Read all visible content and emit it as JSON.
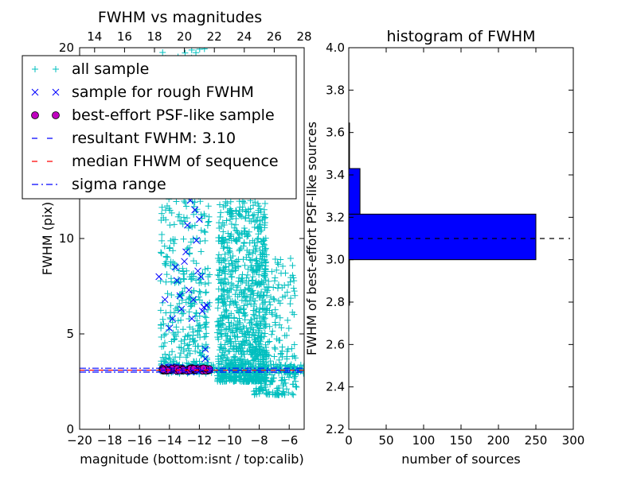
{
  "chart_data": [
    {
      "type": "scatter",
      "title": "FWHM vs magnitudes",
      "xlabel": "magnitude (bottom:isnt / top:calib)",
      "ylabel": "FWHM (pix)",
      "xlim": [
        -20,
        -5
      ],
      "ylim": [
        0,
        20
      ],
      "x_ticks": [
        -20,
        -18,
        -16,
        -14,
        -12,
        -10,
        -8,
        -6
      ],
      "x_tick_labels": [
        "−20",
        "−18",
        "−16",
        "−14",
        "−12",
        "−10",
        "−8",
        "−6"
      ],
      "top_xlim": [
        13,
        28
      ],
      "top_x_ticks": [
        14,
        16,
        18,
        20,
        22,
        24,
        26,
        28
      ],
      "top_x_tick_labels": [
        "14",
        "16",
        "18",
        "20",
        "22",
        "24",
        "26",
        "28"
      ],
      "y_ticks": [
        0,
        5,
        10,
        20
      ],
      "y_tick_labels": [
        "0",
        "5",
        "10",
        "20"
      ],
      "legend": {
        "placement": "upper-left",
        "entries": [
          {
            "label": "all sample",
            "marker": "plus",
            "color": "#00bfbf"
          },
          {
            "label": "sample for rough FWHM",
            "marker": "x",
            "color": "#0000ff"
          },
          {
            "label": "best-effort PSF-like sample",
            "marker": "circle",
            "color": "#bf00bf"
          },
          {
            "label": "resultant FWHM: 3.10",
            "linestyle": "dashed",
            "color": "#0000ff"
          },
          {
            "label": "median FHWM of sequence",
            "linestyle": "dashed",
            "color": "#ff0000"
          },
          {
            "label": "sigma range",
            "linestyle": "dashdot",
            "color": "#0000ff"
          }
        ]
      },
      "series": [
        {
          "name": "all sample",
          "color": "#00bfbf",
          "marker": "plus",
          "clusters": [
            {
              "x_range": [
                -14.6,
                -11.3
              ],
              "y_range": [
                3.0,
                20.0
              ],
              "count": 520
            },
            {
              "x_range": [
                -10.8,
                -7.5
              ],
              "y_range": [
                2.5,
                12.0
              ],
              "count": 900
            },
            {
              "x_range": [
                -8.5,
                -5.5
              ],
              "y_range": [
                1.8,
                9.0
              ],
              "count": 260
            }
          ]
        },
        {
          "name": "sample for rough FWHM",
          "color": "#0000ff",
          "marker": "x",
          "points": [
            [
              -14.7,
              8.0
            ],
            [
              -14.3,
              6.8
            ],
            [
              -14.0,
              5.3
            ],
            [
              -13.8,
              5.8
            ],
            [
              -13.3,
              7.0
            ],
            [
              -13.2,
              6.3
            ],
            [
              -13.0,
              8.8
            ],
            [
              -12.8,
              10.7
            ],
            [
              -12.6,
              12.0
            ],
            [
              -12.3,
              11.5
            ],
            [
              -12.2,
              9.9
            ],
            [
              -12.0,
              11.0
            ],
            [
              -11.9,
              8.0
            ],
            [
              -11.8,
              6.2
            ],
            [
              -11.7,
              6.4
            ],
            [
              -11.6,
              4.2
            ],
            [
              -11.5,
              6.5
            ],
            [
              -12.4,
              6.8
            ],
            [
              -12.5,
              5.8
            ],
            [
              -13.5,
              7.8
            ],
            [
              -13.6,
              8.5
            ],
            [
              -12.9,
              9.3
            ],
            [
              -12.1,
              8.3
            ],
            [
              -11.6,
              3.7
            ],
            [
              -12.7,
              7.3
            ]
          ]
        },
        {
          "name": "best-effort PSF-like sample",
          "color": "#bf00bf",
          "marker": "circle",
          "x_range": [
            -14.5,
            -11.3
          ],
          "y_range": [
            3.05,
            3.22
          ],
          "count": 60
        },
        {
          "name": "resultant FWHM: 3.10",
          "type": "hline",
          "y": 3.1,
          "color": "#0000ff"
        },
        {
          "name": "median FHWM of sequence",
          "type": "hline",
          "y": 3.1,
          "color": "#ff0000"
        },
        {
          "name": "sigma range",
          "type": "hline",
          "y": [
            3.0,
            3.2
          ],
          "color": "#0000ff"
        }
      ]
    },
    {
      "type": "bar",
      "orientation": "horizontal",
      "title": "histogram of FWHM",
      "xlabel": "number of sources",
      "ylabel": "FWHM of best-effort PSF-like sources",
      "xlim": [
        0,
        300
      ],
      "ylim": [
        2.2,
        4.0
      ],
      "x_ticks": [
        0,
        50,
        100,
        150,
        200,
        250,
        300
      ],
      "y_ticks": [
        2.2,
        2.4,
        2.6,
        2.8,
        3.0,
        3.2,
        3.4,
        3.6,
        3.8,
        4.0
      ],
      "y_tick_labels": [
        "2.2",
        "2.4",
        "2.6",
        "2.8",
        "3.0",
        "3.2",
        "3.4",
        "3.6",
        "3.8",
        "4.0"
      ],
      "bins": [
        {
          "from": 2.785,
          "to": 3.0,
          "count": 1
        },
        {
          "from": 3.0,
          "to": 3.215,
          "count": 250
        },
        {
          "from": 3.215,
          "to": 3.43,
          "count": 15
        },
        {
          "from": 3.43,
          "to": 3.645,
          "count": 1
        }
      ],
      "bar_color": "#0000ff",
      "reference_line": {
        "y": 3.1,
        "linestyle": "dashed",
        "color": "#000000"
      }
    }
  ]
}
